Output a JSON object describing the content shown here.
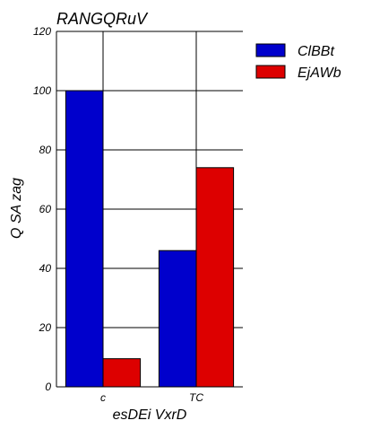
{
  "chart_data": {
    "type": "bar",
    "title": "RANGQRuV",
    "xlabel": "esDEi  VxrD",
    "ylabel": "Q SA zag",
    "categories": [
      "c",
      "TC"
    ],
    "series": [
      {
        "name": "ClBBt",
        "color": "#0000cc",
        "values": [
          100,
          46
        ]
      },
      {
        "name": "EjAWb",
        "color": "#dd0000",
        "values": [
          9.5,
          74
        ]
      }
    ],
    "ylim": [
      0,
      120
    ],
    "yticks": [
      0,
      20,
      40,
      60,
      80,
      100,
      120
    ],
    "grid": true,
    "legend_position": "top-right"
  }
}
